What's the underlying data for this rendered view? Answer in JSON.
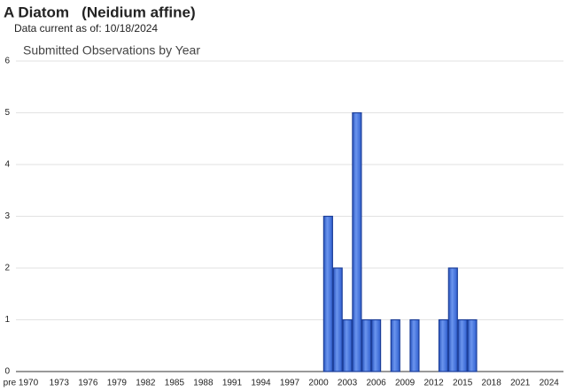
{
  "header": {
    "title": "A Diatom   (Neidium affine)",
    "subtitle": "Data current as of: 10/18/2024"
  },
  "chart_data": {
    "type": "bar",
    "title": "Submitted Observations by Year",
    "categories": [
      "pre 1970",
      null,
      null,
      null,
      "1973",
      null,
      null,
      "1976",
      null,
      null,
      "1979",
      null,
      null,
      "1982",
      null,
      null,
      "1985",
      null,
      null,
      "1988",
      null,
      null,
      "1991",
      null,
      null,
      "1994",
      null,
      null,
      "1997",
      null,
      null,
      "2000",
      null,
      null,
      "2003",
      null,
      null,
      "2006",
      null,
      null,
      "2009",
      null,
      null,
      "2012",
      null,
      null,
      "2015",
      null,
      null,
      "2018",
      null,
      null,
      "2021",
      null,
      null,
      "2024",
      null
    ],
    "values": [
      0,
      0,
      0,
      0,
      0,
      0,
      0,
      0,
      0,
      0,
      0,
      0,
      0,
      0,
      0,
      0,
      0,
      0,
      0,
      0,
      0,
      0,
      0,
      0,
      0,
      0,
      0,
      0,
      0,
      0,
      0,
      0,
      3,
      2,
      1,
      5,
      1,
      1,
      0,
      1,
      0,
      1,
      0,
      0,
      1,
      2,
      1,
      1,
      0,
      0,
      0,
      0,
      0,
      0,
      0,
      0,
      0
    ],
    "color": "#3f72d9",
    "ylim": [
      0,
      6
    ],
    "yticks": [
      0,
      1,
      2,
      3,
      4,
      5,
      6
    ],
    "grid": true
  }
}
